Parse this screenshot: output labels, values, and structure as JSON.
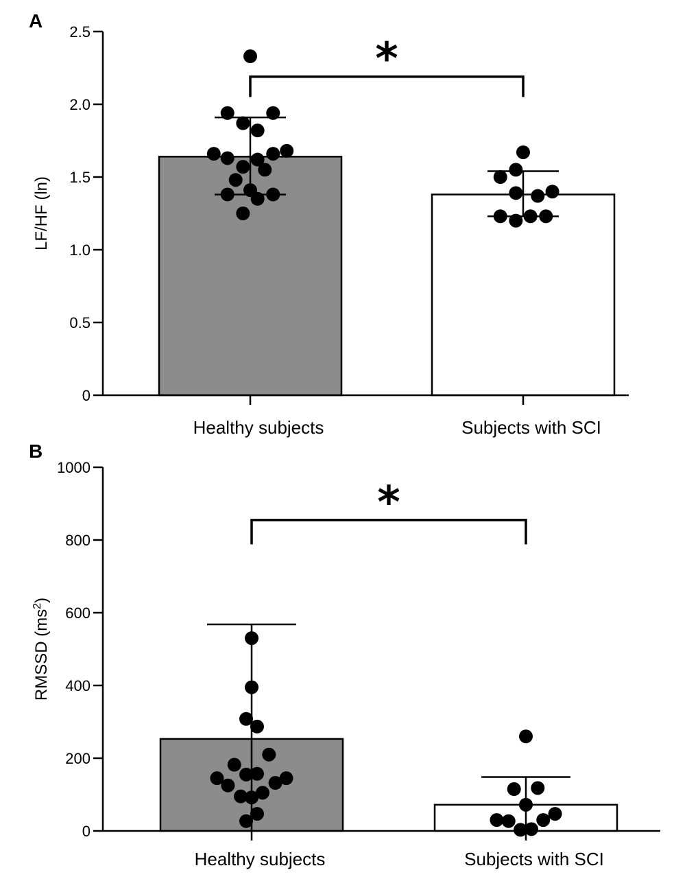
{
  "chart_data": [
    {
      "panel": "A",
      "type": "bar",
      "ylabel": "LF/HF (ln)",
      "ylim": [
        0,
        2.5
      ],
      "yticks": [
        0,
        0.5,
        1.0,
        1.5,
        2.0,
        2.5
      ],
      "ytick_labels": [
        "0",
        "0.5",
        "1.0",
        "1.5",
        "2.0",
        "2.5"
      ],
      "categories": [
        "Healthy subjects",
        "Subjects with SCI"
      ],
      "bar_colors": [
        "#8c8c8c",
        "#ffffff"
      ],
      "means": [
        1.64,
        1.38
      ],
      "error_upper": [
        1.91,
        1.54
      ],
      "error_lower": [
        1.38,
        1.23
      ],
      "points": [
        [
          {
            "x": 0.0,
            "y": 2.33
          },
          {
            "x": -0.25,
            "y": 1.94
          },
          {
            "x": 0.25,
            "y": 1.94
          },
          {
            "x": -0.08,
            "y": 1.87
          },
          {
            "x": 0.08,
            "y": 1.82
          },
          {
            "x": -0.4,
            "y": 1.66
          },
          {
            "x": 0.4,
            "y": 1.68
          },
          {
            "x": 0.25,
            "y": 1.66
          },
          {
            "x": -0.25,
            "y": 1.63
          },
          {
            "x": 0.08,
            "y": 1.62
          },
          {
            "x": -0.08,
            "y": 1.57
          },
          {
            "x": 0.16,
            "y": 1.55
          },
          {
            "x": -0.16,
            "y": 1.48
          },
          {
            "x": 0.0,
            "y": 1.41
          },
          {
            "x": -0.25,
            "y": 1.38
          },
          {
            "x": 0.25,
            "y": 1.38
          },
          {
            "x": 0.08,
            "y": 1.35
          },
          {
            "x": -0.08,
            "y": 1.25
          }
        ],
        [
          {
            "x": 0.0,
            "y": 1.67
          },
          {
            "x": -0.08,
            "y": 1.55
          },
          {
            "x": -0.25,
            "y": 1.5
          },
          {
            "x": -0.08,
            "y": 1.39
          },
          {
            "x": 0.16,
            "y": 1.37
          },
          {
            "x": 0.32,
            "y": 1.4
          },
          {
            "x": -0.25,
            "y": 1.23
          },
          {
            "x": -0.08,
            "y": 1.2
          },
          {
            "x": 0.08,
            "y": 1.23
          },
          {
            "x": 0.25,
            "y": 1.23
          }
        ]
      ],
      "significance": {
        "label": "*",
        "bracket_y": 2.19,
        "drop_to": 2.05
      }
    },
    {
      "panel": "B",
      "type": "bar",
      "ylabel": "RMSSD (ms",
      "ylabel_sup": "2",
      "ylabel_end": ")",
      "ylim": [
        0,
        1000
      ],
      "yticks": [
        0,
        200,
        400,
        600,
        800,
        1000
      ],
      "ytick_labels": [
        "0",
        "200",
        "400",
        "600",
        "800",
        "1000"
      ],
      "categories": [
        "Healthy subjects",
        "Subjects with SCI"
      ],
      "bar_colors": [
        "#8c8c8c",
        "#ffffff"
      ],
      "means": [
        253,
        72
      ],
      "error_upper": [
        568,
        148
      ],
      "error_lower": [
        0,
        0
      ],
      "points": [
        [
          {
            "x": 0.0,
            "y": 530
          },
          {
            "x": 0.0,
            "y": 395
          },
          {
            "x": -0.06,
            "y": 308
          },
          {
            "x": 0.06,
            "y": 287
          },
          {
            "x": 0.19,
            "y": 210
          },
          {
            "x": -0.19,
            "y": 182
          },
          {
            "x": -0.38,
            "y": 145
          },
          {
            "x": 0.38,
            "y": 145
          },
          {
            "x": -0.06,
            "y": 155
          },
          {
            "x": 0.06,
            "y": 157
          },
          {
            "x": -0.26,
            "y": 125
          },
          {
            "x": 0.26,
            "y": 132
          },
          {
            "x": 0.12,
            "y": 105
          },
          {
            "x": -0.12,
            "y": 95
          },
          {
            "x": 0.0,
            "y": 92
          },
          {
            "x": 0.06,
            "y": 47
          },
          {
            "x": -0.06,
            "y": 27
          }
        ],
        [
          {
            "x": 0.0,
            "y": 260
          },
          {
            "x": 0.13,
            "y": 118
          },
          {
            "x": -0.13,
            "y": 115
          },
          {
            "x": 0.0,
            "y": 72
          },
          {
            "x": 0.32,
            "y": 47
          },
          {
            "x": -0.32,
            "y": 30
          },
          {
            "x": 0.19,
            "y": 30
          },
          {
            "x": -0.19,
            "y": 27
          },
          {
            "x": 0.06,
            "y": 5
          },
          {
            "x": -0.06,
            "y": 3
          }
        ]
      ],
      "significance": {
        "label": "*",
        "bracket_y": 855,
        "drop_to": 788
      }
    }
  ]
}
